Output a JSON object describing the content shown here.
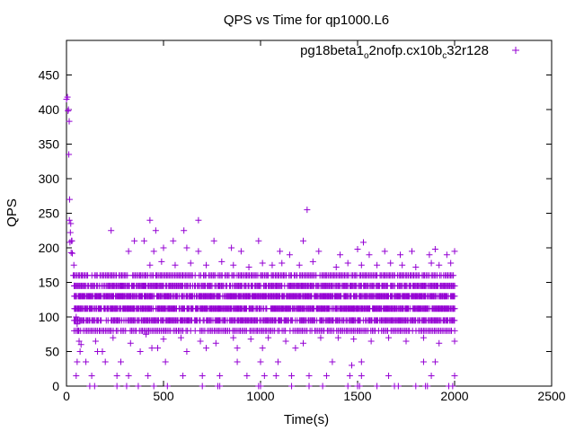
{
  "chart_data": {
    "type": "scatter",
    "title": "QPS vs Time for qp1000.L6",
    "xlabel": "Time(s)",
    "ylabel": "QPS",
    "xlim": [
      0,
      2500
    ],
    "ylim": [
      0,
      500
    ],
    "xticks": [
      0,
      500,
      1000,
      1500,
      2000,
      2500
    ],
    "yticks": [
      0,
      50,
      100,
      150,
      200,
      250,
      300,
      350,
      400,
      450
    ],
    "grid": false,
    "legend_position": "top-right",
    "colors": {
      "series": "#9400d3",
      "axis": "#000000"
    },
    "series": [
      {
        "name": "pg18beta1_o2nofp.cx10b_c32r128",
        "legend_parts": [
          "pg18beta1",
          "o",
          "2nofp.cx10b",
          "c",
          "32r128"
        ],
        "marker": "plus",
        "points": [
          [
            0,
            415
          ],
          [
            5,
            418
          ],
          [
            8,
            398
          ],
          [
            10,
            400
          ],
          [
            12,
            335
          ],
          [
            14,
            383
          ],
          [
            15,
            240
          ],
          [
            16,
            270
          ],
          [
            18,
            208
          ],
          [
            20,
            222
          ],
          [
            22,
            235
          ],
          [
            24,
            193
          ],
          [
            26,
            210
          ],
          [
            28,
            210
          ],
          [
            30,
            192
          ],
          [
            35,
            160
          ],
          [
            38,
            175
          ],
          [
            40,
            145
          ],
          [
            45,
            130
          ],
          [
            50,
            100
          ],
          [
            55,
            90
          ],
          [
            60,
            80
          ],
          [
            65,
            65
          ],
          [
            70,
            50
          ],
          [
            160,
            50
          ],
          [
            185,
            50
          ],
          [
            380,
            50
          ],
          [
            440,
            55
          ],
          [
            470,
            55
          ],
          [
            620,
            50
          ],
          [
            720,
            55
          ],
          [
            880,
            55
          ],
          [
            1010,
            55
          ],
          [
            1180,
            55
          ],
          [
            230,
            225
          ],
          [
            430,
            240
          ],
          [
            460,
            225
          ],
          [
            605,
            225
          ],
          [
            680,
            240
          ],
          [
            1240,
            255
          ],
          [
            1530,
            208
          ],
          [
            55,
            35
          ],
          [
            100,
            35
          ],
          [
            200,
            35
          ],
          [
            280,
            35
          ],
          [
            510,
            35
          ],
          [
            880,
            35
          ],
          [
            1000,
            35
          ],
          [
            1090,
            35
          ],
          [
            1370,
            35
          ],
          [
            1470,
            30
          ],
          [
            1520,
            35
          ],
          [
            1840,
            35
          ],
          [
            1900,
            35
          ],
          [
            50,
            15
          ],
          [
            130,
            15
          ],
          [
            260,
            15
          ],
          [
            320,
            15
          ],
          [
            420,
            15
          ],
          [
            600,
            15
          ],
          [
            700,
            15
          ],
          [
            790,
            15
          ],
          [
            930,
            15
          ],
          [
            1020,
            15
          ],
          [
            1080,
            15
          ],
          [
            1160,
            15
          ],
          [
            1250,
            15
          ],
          [
            1340,
            15
          ],
          [
            1460,
            15
          ],
          [
            1520,
            15
          ],
          [
            1660,
            15
          ],
          [
            1880,
            15
          ],
          [
            2000,
            15
          ],
          [
            120,
            0
          ],
          [
            145,
            0
          ],
          [
            260,
            0
          ],
          [
            310,
            0
          ],
          [
            370,
            0
          ],
          [
            450,
            0
          ],
          [
            520,
            0
          ],
          [
            700,
            0
          ],
          [
            780,
            0
          ],
          [
            790,
            0
          ],
          [
            990,
            0
          ],
          [
            1000,
            0
          ],
          [
            1160,
            0
          ],
          [
            1250,
            0
          ],
          [
            1320,
            0
          ],
          [
            1450,
            0
          ],
          [
            1500,
            0
          ],
          [
            1510,
            0
          ],
          [
            1600,
            0
          ],
          [
            1690,
            0
          ],
          [
            1710,
            0
          ],
          [
            1800,
            0
          ],
          [
            1850,
            0
          ],
          [
            1860,
            0
          ],
          [
            1970,
            0
          ],
          [
            1990,
            0
          ],
          [
            75,
            60
          ],
          [
            150,
            65
          ],
          [
            240,
            70
          ],
          [
            330,
            62
          ],
          [
            410,
            75
          ],
          [
            500,
            68
          ],
          [
            590,
            70
          ],
          [
            690,
            65
          ],
          [
            770,
            62
          ],
          [
            860,
            70
          ],
          [
            950,
            68
          ],
          [
            1040,
            70
          ],
          [
            1130,
            65
          ],
          [
            1220,
            62
          ],
          [
            1310,
            70
          ],
          [
            1400,
            70
          ],
          [
            1480,
            68
          ],
          [
            1570,
            65
          ],
          [
            1660,
            70
          ],
          [
            1750,
            65
          ],
          [
            1840,
            70
          ],
          [
            1920,
            62
          ],
          [
            2000,
            65
          ],
          [
            320,
            195
          ],
          [
            350,
            210
          ],
          [
            400,
            210
          ],
          [
            450,
            195
          ],
          [
            500,
            200
          ],
          [
            550,
            210
          ],
          [
            620,
            200
          ],
          [
            680,
            195
          ],
          [
            760,
            210
          ],
          [
            850,
            200
          ],
          [
            900,
            195
          ],
          [
            990,
            210
          ],
          [
            1100,
            195
          ],
          [
            1150,
            190
          ],
          [
            1220,
            210
          ],
          [
            1300,
            195
          ],
          [
            1410,
            190
          ],
          [
            1500,
            198
          ],
          [
            1560,
            190
          ],
          [
            1640,
            195
          ],
          [
            1720,
            190
          ],
          [
            1780,
            195
          ],
          [
            1870,
            190
          ],
          [
            1900,
            198
          ],
          [
            1960,
            190
          ],
          [
            2000,
            195
          ],
          [
            430,
            175
          ],
          [
            490,
            180
          ],
          [
            560,
            175
          ],
          [
            640,
            178
          ],
          [
            720,
            175
          ],
          [
            800,
            180
          ],
          [
            860,
            175
          ],
          [
            940,
            172
          ],
          [
            1010,
            178
          ],
          [
            1060,
            175
          ],
          [
            1110,
            178
          ],
          [
            1200,
            175
          ],
          [
            1270,
            180
          ],
          [
            1390,
            172
          ],
          [
            1450,
            178
          ],
          [
            1520,
            175
          ],
          [
            1600,
            175
          ],
          [
            1670,
            178
          ],
          [
            1730,
            175
          ],
          [
            1800,
            172
          ],
          [
            1880,
            178
          ],
          [
            1920,
            175
          ],
          [
            1980,
            178
          ]
        ],
        "density": [
          {
            "x": [
              40,
              2000
            ],
            "y": 160,
            "step": 7
          },
          {
            "x": [
              40,
              2000
            ],
            "y": 145,
            "step": 5
          },
          {
            "x": [
              40,
              2000
            ],
            "y": 130,
            "step": 4
          },
          {
            "x": [
              40,
              2000
            ],
            "y": 112,
            "step": 4
          },
          {
            "x": [
              40,
              2000
            ],
            "y": 95,
            "step": 5
          },
          {
            "x": [
              40,
              2000
            ],
            "y": 80,
            "step": 8
          }
        ]
      }
    ]
  }
}
